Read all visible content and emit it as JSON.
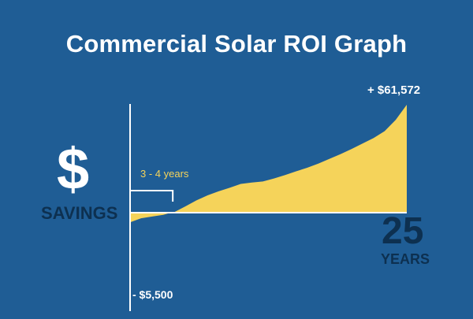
{
  "title": "Commercial Solar ROI Graph",
  "y_axis_symbol": "$",
  "y_axis_label": "SAVINGS",
  "x_axis_end_number": "25",
  "x_axis_end_unit": "YEARS",
  "colors": {
    "background": "#1f5d95",
    "area_fill": "#f5d35a",
    "axis": "#ffffff",
    "dark_text": "#0d3050"
  },
  "chart_data": {
    "type": "area",
    "title": "Commercial Solar ROI Graph",
    "xlabel": "YEARS",
    "ylabel": "SAVINGS",
    "x": [
      0,
      1,
      2,
      3,
      3.5,
      4,
      5,
      6,
      7,
      8,
      9,
      10,
      11,
      12,
      13,
      14,
      15,
      16,
      17,
      18,
      19,
      20,
      21,
      22,
      23,
      24,
      25
    ],
    "values": [
      -5500,
      -3200,
      -2200,
      -1200,
      -300,
      300,
      3600,
      7000,
      9900,
      12200,
      14200,
      16400,
      17200,
      17800,
      19500,
      21500,
      23600,
      25600,
      28000,
      30700,
      33400,
      36300,
      39400,
      42600,
      46500,
      53000,
      61572
    ],
    "xlim": [
      0,
      25
    ],
    "ylim": [
      -9000,
      70000
    ],
    "payback_bracket": {
      "label": "3 - 4 years",
      "x_start": 0,
      "x_end": 4
    },
    "annotations": {
      "end_label": "+ $61,572",
      "start_label": "- $5,500"
    }
  }
}
